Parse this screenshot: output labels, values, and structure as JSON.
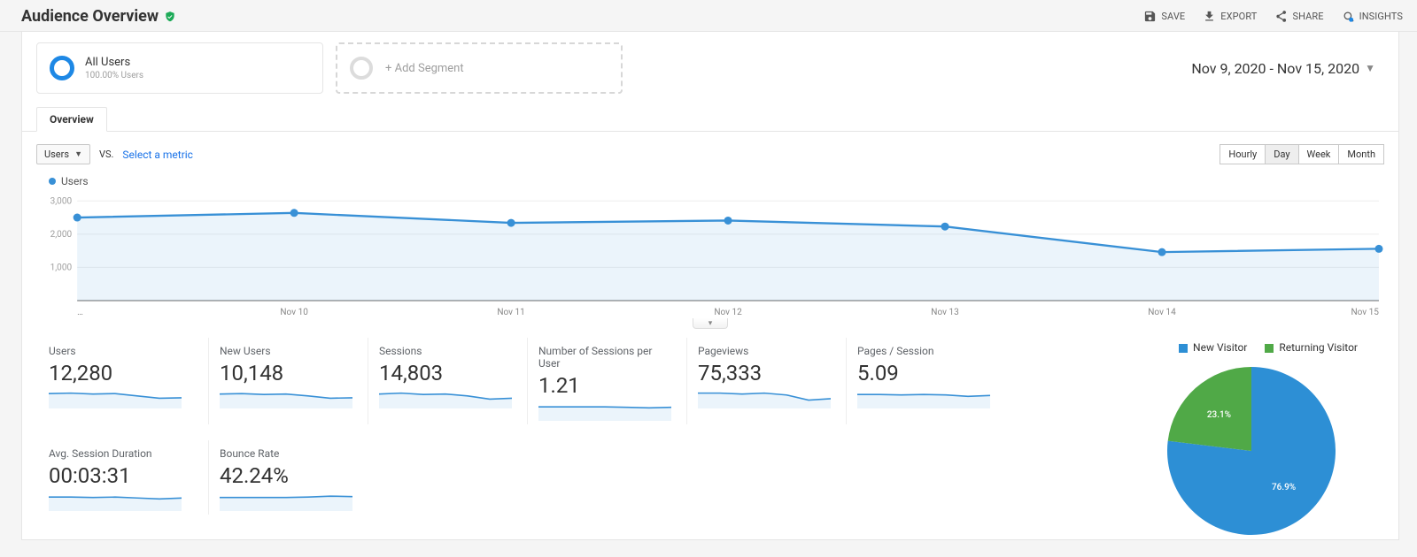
{
  "header": {
    "title": "Audience Overview",
    "shield_color": "#1caa57",
    "actions": {
      "save": "SAVE",
      "export": "EXPORT",
      "share": "SHARE",
      "insights": "INSIGHTS"
    }
  },
  "segments": {
    "all_users": {
      "title": "All Users",
      "subtitle": "100.00% Users",
      "donut_color": "#1e88e5"
    },
    "add": {
      "label": "+ Add Segment"
    }
  },
  "date_range": "Nov 9, 2020 - Nov 15, 2020",
  "tabs": {
    "overview": "Overview"
  },
  "controls": {
    "metric_dropdown": "Users",
    "vs": "VS.",
    "select_metric": "Select a metric",
    "granularity": [
      "Hourly",
      "Day",
      "Week",
      "Month"
    ],
    "granularity_active": "Day"
  },
  "users_chart": {
    "type": "line",
    "legend": "Users",
    "line_color": "#3890d6",
    "line_width": 2.3,
    "marker_radius": 4.5,
    "area_opacity": 0.1,
    "background_color": "#ffffff",
    "grid_color": "#eeeeee",
    "axis_color": "#666666",
    "tick_color": "#9e9e9e",
    "tick_fontsize": 10,
    "yticks": [
      1000,
      2000,
      3000
    ],
    "ytick_labels": [
      "1,000",
      "2,000",
      "3,000"
    ],
    "ylim": [
      0,
      3300
    ],
    "x_labels": [
      "…",
      "Nov 10",
      "Nov 11",
      "Nov 12",
      "Nov 13",
      "Nov 14",
      "Nov 15"
    ],
    "values": [
      2500,
      2640,
      2340,
      2410,
      2230,
      1460,
      1560
    ]
  },
  "metrics": {
    "row1": [
      {
        "label": "Users",
        "value": "12,280",
        "spark": [
          32,
          33,
          31,
          32,
          27,
          22,
          23
        ],
        "spark_base": 38
      },
      {
        "label": "New Users",
        "value": "10,148",
        "spark": [
          31,
          32,
          30,
          31,
          27,
          22,
          23
        ],
        "spark_base": 38
      },
      {
        "label": "Sessions",
        "value": "14,803",
        "spark": [
          31,
          33,
          30,
          31,
          27,
          20,
          22
        ],
        "spark_base": 38
      },
      {
        "label": "Number of Sessions per User",
        "value": "1.21",
        "spark": [
          30,
          30,
          30,
          30,
          29,
          28,
          29
        ],
        "spark_base": 38
      },
      {
        "label": "Pageviews",
        "value": "75,333",
        "spark": [
          33,
          33,
          31,
          33,
          29,
          18,
          21
        ],
        "spark_base": 38
      },
      {
        "label": "Pages / Session",
        "value": "5.09",
        "spark": [
          30,
          30,
          29,
          30,
          29,
          26,
          28
        ],
        "spark_base": 38
      }
    ],
    "row2": [
      {
        "label": "Avg. Session Duration",
        "value": "00:03:31",
        "spark": [
          30,
          30,
          29,
          30,
          28,
          26,
          28
        ],
        "spark_base": 38
      },
      {
        "label": "Bounce Rate",
        "value": "42.24%",
        "spark": [
          29,
          29,
          29,
          29,
          30,
          32,
          31
        ],
        "spark_base": 38
      }
    ],
    "spark_style": {
      "line_color": "#3890d6",
      "area_opacity": 0.1
    }
  },
  "pie": {
    "type": "pie",
    "legend": [
      {
        "label": "New Visitor",
        "color": "#2d8fd5"
      },
      {
        "label": "Returning Visitor",
        "color": "#50a947"
      }
    ],
    "slices": [
      {
        "label": "76.9%",
        "value": 76.9,
        "color": "#2d8fd5"
      },
      {
        "label": "23.1%",
        "value": 23.1,
        "color": "#50a947"
      }
    ],
    "diameter": 190,
    "start_angle_deg": -90,
    "label_color": "#ffffff"
  }
}
